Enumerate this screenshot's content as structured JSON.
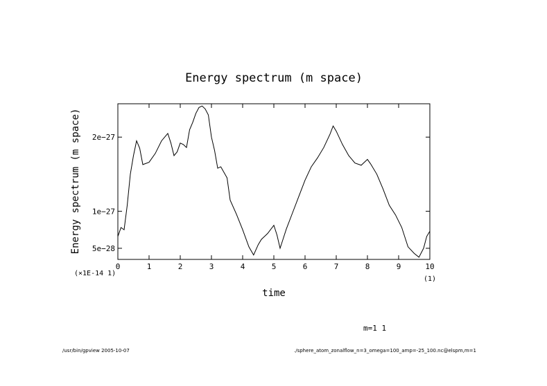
{
  "chart_data": {
    "type": "line",
    "title": "Energy spectrum (m space)",
    "xlabel": "time",
    "ylabel": "Energy spectrum (m space)",
    "x_multiplier": "(1)",
    "y_multiplier": "(×1E-14 1)",
    "xlim": [
      0,
      10
    ],
    "ylim": [
      3.5e-28,
      2.45e-27
    ],
    "x_ticks": [
      {
        "value": 0,
        "label": "0"
      },
      {
        "value": 1,
        "label": "1"
      },
      {
        "value": 2,
        "label": "2"
      },
      {
        "value": 3,
        "label": "3"
      },
      {
        "value": 4,
        "label": "4"
      },
      {
        "value": 5,
        "label": "5"
      },
      {
        "value": 6,
        "label": "6"
      },
      {
        "value": 7,
        "label": "7"
      },
      {
        "value": 8,
        "label": "8"
      },
      {
        "value": 9,
        "label": "9"
      },
      {
        "value": 10,
        "label": "10"
      }
    ],
    "y_ticks": [
      {
        "value": 5e-28,
        "label": "5e−28"
      },
      {
        "value": 1e-27,
        "label": "1e−27"
      },
      {
        "value": 2e-27,
        "label": "2e−27"
      }
    ],
    "legend": "m=1 1",
    "series": [
      {
        "name": "m=1 1",
        "x": [
          0,
          0.1,
          0.2,
          0.3,
          0.4,
          0.5,
          0.6,
          0.7,
          0.8,
          1.0,
          1.2,
          1.4,
          1.6,
          1.7,
          1.8,
          1.9,
          2.0,
          2.1,
          2.2,
          2.3,
          2.4,
          2.5,
          2.6,
          2.7,
          2.8,
          2.9,
          3.0,
          3.1,
          3.2,
          3.3,
          3.5,
          3.6,
          3.8,
          4.0,
          4.2,
          4.35,
          4.5,
          4.6,
          4.8,
          5.0,
          5.1,
          5.2,
          5.3,
          5.4,
          5.6,
          5.8,
          6.0,
          6.2,
          6.4,
          6.6,
          6.8,
          6.9,
          7.0,
          7.2,
          7.4,
          7.6,
          7.8,
          8.0,
          8.1,
          8.3,
          8.5,
          8.7,
          8.9,
          9.1,
          9.3,
          9.5,
          9.65,
          9.8,
          9.9,
          10.0
        ],
        "y": [
          6.6e-28,
          7.8e-28,
          7.5e-28,
          1.08e-27,
          1.5e-27,
          1.75e-27,
          1.95e-27,
          1.85e-27,
          1.63e-27,
          1.66e-27,
          1.78e-27,
          1.95e-27,
          2.05e-27,
          1.92e-27,
          1.75e-27,
          1.8e-27,
          1.92e-27,
          1.9e-27,
          1.86e-27,
          2.1e-27,
          2.2e-27,
          2.32e-27,
          2.4e-27,
          2.42e-27,
          2.38e-27,
          2.3e-27,
          2e-27,
          1.82e-27,
          1.58e-27,
          1.6e-27,
          1.45e-27,
          1.15e-27,
          9.6e-28,
          7.5e-28,
          5.2e-28,
          4.1e-28,
          5.5e-28,
          6.2e-28,
          7e-28,
          8.1e-28,
          6.8e-28,
          5e-28,
          6.3e-28,
          7.6e-28,
          9.8e-28,
          1.2e-27,
          1.42e-27,
          1.6e-27,
          1.72e-27,
          1.86e-27,
          2.04e-27,
          2.15e-27,
          2.08e-27,
          1.9e-27,
          1.75e-27,
          1.65e-27,
          1.62e-27,
          1.7e-27,
          1.64e-27,
          1.5e-27,
          1.3e-27,
          1.08e-27,
          9.5e-28,
          7.8e-28,
          5.2e-28,
          4.3e-28,
          3.8e-28,
          5e-28,
          6.6e-28,
          7.3e-28
        ]
      }
    ]
  },
  "footer": {
    "left": "/usr/bin/gpview  2005-10-07",
    "right": "./sphere_atom_zonalflow_n=3_omega=100_amp=-25_100.nc@elspm,m=1"
  }
}
